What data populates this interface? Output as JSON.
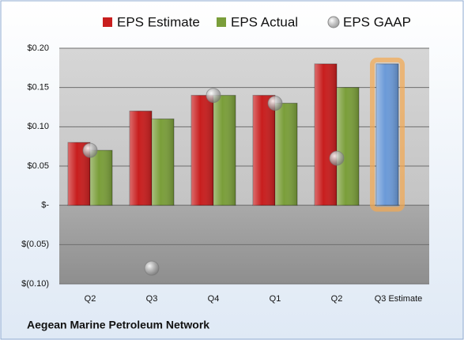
{
  "chart_data": {
    "type": "bar",
    "categories": [
      "Q2",
      "Q3",
      "Q4",
      "Q1",
      "Q2",
      "Q3 Estimate"
    ],
    "series": [
      {
        "name": "EPS Estimate",
        "color": "#c81e1e",
        "colors": [
          "#c81e1e",
          "#c81e1e",
          "#c81e1e",
          "#c81e1e",
          "#c81e1e",
          "#6b9ad8"
        ],
        "glow_color": "#f4a850",
        "values": [
          0.08,
          0.12,
          0.14,
          0.14,
          0.18,
          0.18
        ]
      },
      {
        "name": "EPS Actual",
        "color": "#7a9e3a",
        "values": [
          0.07,
          0.11,
          0.14,
          0.13,
          0.15,
          null
        ]
      },
      {
        "name": "EPS GAAP",
        "color": "#a8a8a8",
        "marker": "circle",
        "values": [
          0.07,
          -0.08,
          0.14,
          0.13,
          0.06,
          null
        ]
      }
    ],
    "ylim": [
      -0.1,
      0.2
    ],
    "yticks": [
      {
        "value": 0.2,
        "label": "$0.20"
      },
      {
        "value": 0.15,
        "label": "$0.15"
      },
      {
        "value": 0.1,
        "label": "$0.10"
      },
      {
        "value": 0.05,
        "label": "$0.05"
      },
      {
        "value": 0,
        "label": "$-"
      },
      {
        "value": -0.05,
        "label": "$(0.05)"
      },
      {
        "value": -0.1,
        "label": "$(0.10)"
      }
    ],
    "grid": true,
    "legend": "top",
    "footer": "Aegean Marine Petroleum Network"
  }
}
